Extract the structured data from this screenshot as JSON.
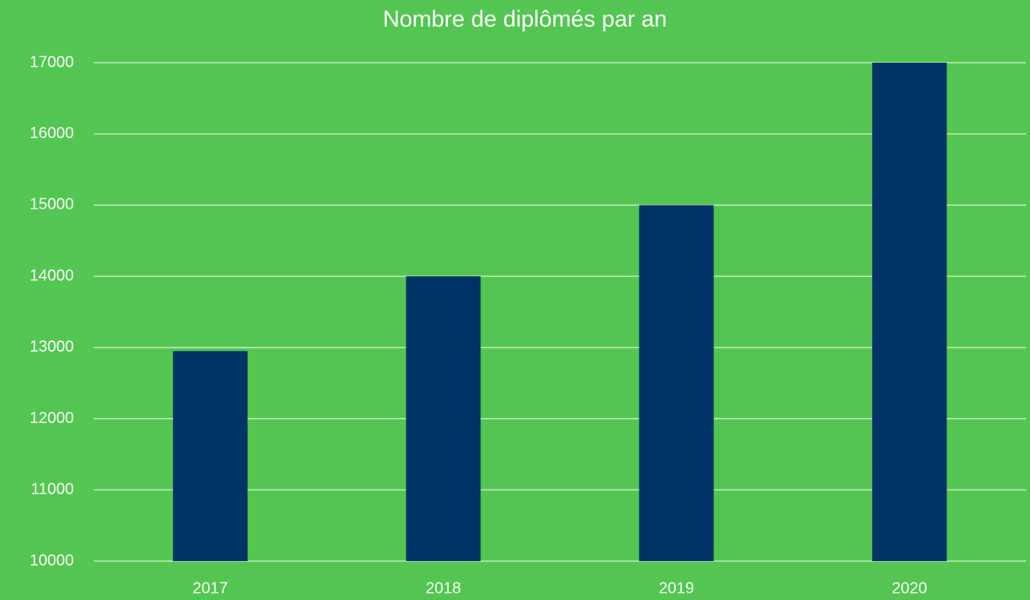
{
  "chart_data": {
    "type": "bar",
    "title": "Nombre de diplômés par an",
    "categories": [
      "2017",
      "2018",
      "2019",
      "2020"
    ],
    "values": [
      12950,
      14000,
      15000,
      17000
    ],
    "color": "#003366",
    "ylim": [
      10000,
      17000
    ],
    "yticks": [
      10000,
      11000,
      12000,
      13000,
      14000,
      15000,
      16000,
      17000
    ],
    "grid": true
  }
}
